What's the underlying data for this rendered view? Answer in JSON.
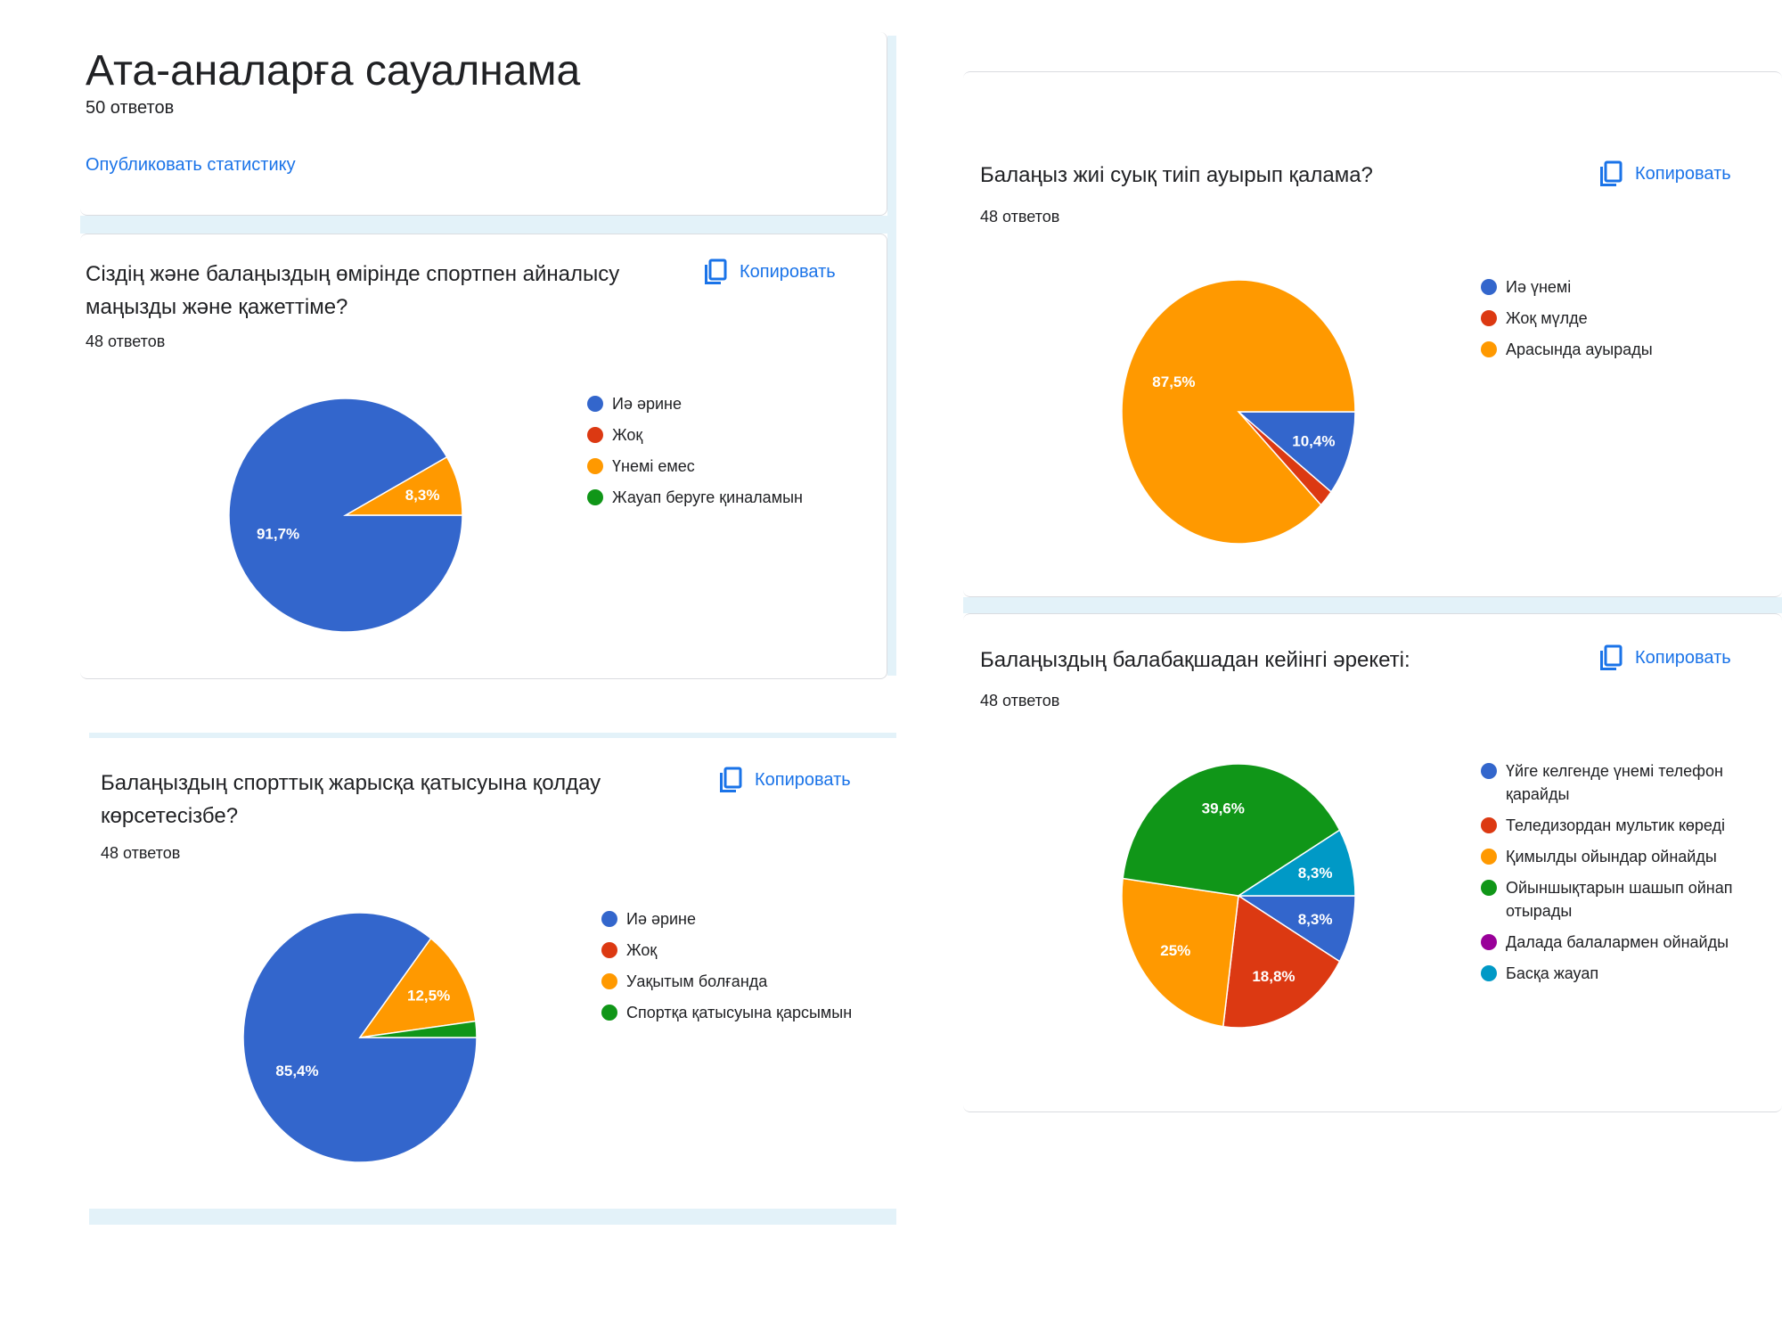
{
  "header": {
    "title": "Ата-аналарға сауалнама",
    "responses": "50 ответов",
    "publish_label": "Опубликовать статистику"
  },
  "copy_label": "Копировать",
  "colors": {
    "blue": "#3366cc",
    "red": "#dc3912",
    "orange": "#ff9900",
    "green": "#109618",
    "purple": "#990099",
    "teal": "#0099c6",
    "link": "#1a73e8"
  },
  "chart_data": [
    {
      "type": "pie",
      "title": "Сіздің және балаңыздың өмірінде спортпен айналысу маңызды және қажеттіме?",
      "responses": "48 ответов",
      "legend": "right",
      "categories": [
        "Иә әрине",
        "Жоқ",
        "Үнемі емес",
        "Жауап беруге қиналамын"
      ],
      "values": [
        91.7,
        0,
        8.3,
        0
      ],
      "labels": [
        "91,7%",
        "",
        "8,3%",
        ""
      ],
      "colors": [
        "#3366cc",
        "#dc3912",
        "#ff9900",
        "#109618"
      ]
    },
    {
      "type": "pie",
      "title": "Балаңыздың спорттық жарысқа қатысуына қолдау көрсетесізбе?",
      "responses": "48 ответов",
      "legend": "right",
      "categories": [
        "Иә әрине",
        "Жоқ",
        "Уақытым болғанда",
        "Спортқа қатысуына қарсымын"
      ],
      "values": [
        85.4,
        0,
        12.5,
        2.1
      ],
      "labels": [
        "85,4%",
        "",
        "12,5%",
        ""
      ],
      "colors": [
        "#3366cc",
        "#dc3912",
        "#ff9900",
        "#109618"
      ]
    },
    {
      "type": "pie",
      "title": "Балаңыз жиі суық тиіп ауырып қалама?",
      "responses": "48 ответов",
      "legend": "right",
      "categories": [
        "Иә үнемі",
        "Жоқ мүлде",
        "Арасында ауырады"
      ],
      "values": [
        10.4,
        2.1,
        87.5
      ],
      "labels": [
        "10,4%",
        "",
        "87,5%"
      ],
      "colors": [
        "#3366cc",
        "#dc3912",
        "#ff9900"
      ]
    },
    {
      "type": "pie",
      "title": "Балаңыздың балабақшадан кейінгі әрекеті:",
      "responses": "48 ответов",
      "legend": "right",
      "categories": [
        "Үйге келгенде үнемі телефон қарайды",
        "Теледизордан мультик көреді",
        "Қимылды ойындар ойнайды",
        "Ойыншықтарын шашып ойнап отырады",
        "Далада балалармен ойнайды",
        "Басқа жауап"
      ],
      "values": [
        8.3,
        18.8,
        25,
        39.6,
        0,
        8.3
      ],
      "labels": [
        "8,3%",
        "18,8%",
        "25%",
        "39,6%",
        "",
        "8,3%"
      ],
      "colors": [
        "#3366cc",
        "#dc3912",
        "#ff9900",
        "#109618",
        "#990099",
        "#0099c6"
      ]
    }
  ]
}
